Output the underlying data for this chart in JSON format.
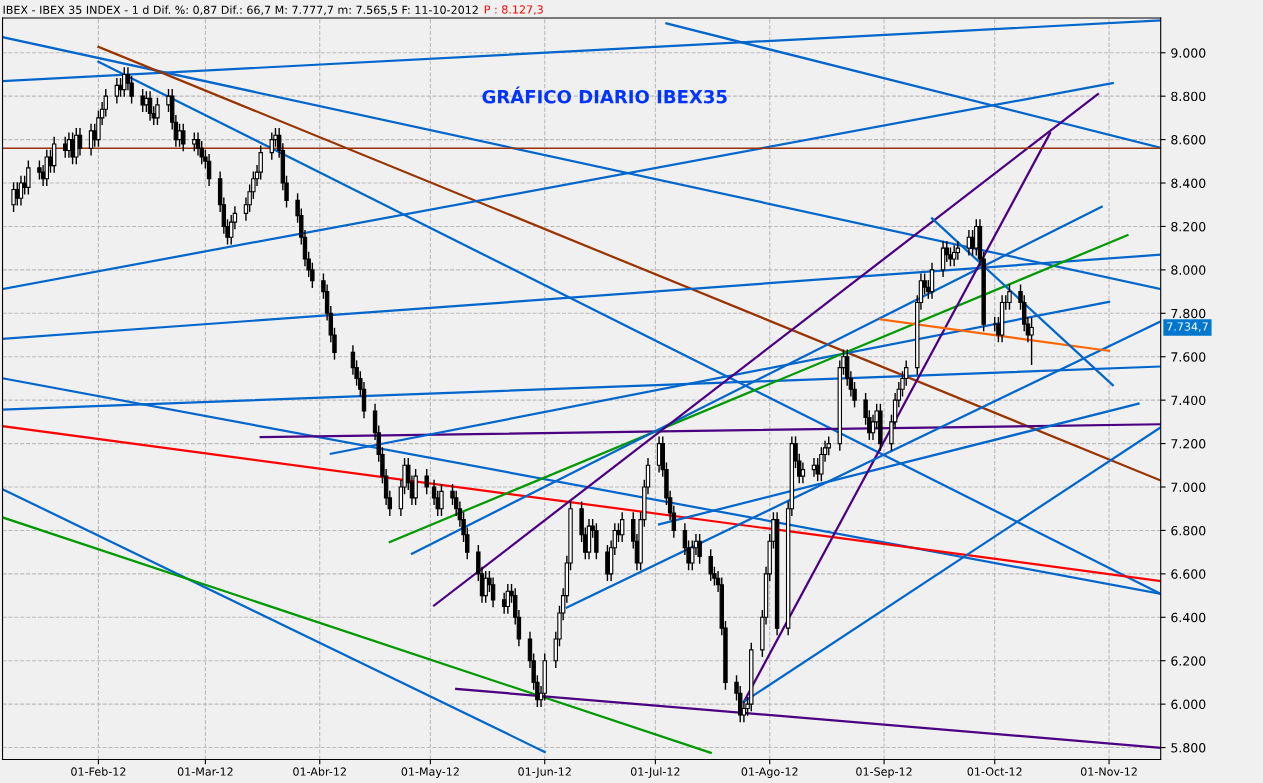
{
  "chart_data": {
    "type": "candlestick",
    "title": "IBEX - IBEX 35 INDEX - 1 d Dif. %: 0,87 Dif.: 66,7 M: 7.777,7 m: 7.565,5 F: 11-10-2012",
    "annotations": [
      "P : 8.127,3",
      "GRÁFICO DIARIO IBEX35",
      "7.734,7"
    ],
    "x": [
      "2012-01-09",
      "2012-01-10",
      "2012-01-11",
      "2012-01-12",
      "2012-01-13",
      "2012-01-16",
      "2012-01-17",
      "2012-01-18",
      "2012-01-19",
      "2012-01-20",
      "2012-01-23",
      "2012-01-24",
      "2012-01-25",
      "2012-01-26",
      "2012-01-27",
      "2012-01-30",
      "2012-01-31",
      "2012-02-01",
      "2012-02-02",
      "2012-02-03",
      "2012-02-06",
      "2012-02-07",
      "2012-02-08",
      "2012-02-09",
      "2012-02-10",
      "2012-02-13",
      "2012-02-14",
      "2012-02-15",
      "2012-02-16",
      "2012-02-17",
      "2012-02-20",
      "2012-02-21",
      "2012-02-22",
      "2012-02-23",
      "2012-02-24",
      "2012-02-27",
      "2012-02-28",
      "2012-02-29",
      "2012-03-01",
      "2012-03-02",
      "2012-03-05",
      "2012-03-06",
      "2012-03-07",
      "2012-03-08",
      "2012-03-09",
      "2012-03-12",
      "2012-03-13",
      "2012-03-14",
      "2012-03-15",
      "2012-03-16",
      "2012-03-19",
      "2012-03-20",
      "2012-03-21",
      "2012-03-22",
      "2012-03-23",
      "2012-03-26",
      "2012-03-27",
      "2012-03-28",
      "2012-03-29",
      "2012-03-30",
      "2012-04-02",
      "2012-04-03",
      "2012-04-04",
      "2012-04-05",
      "2012-04-10",
      "2012-04-11",
      "2012-04-12",
      "2012-04-13",
      "2012-04-16",
      "2012-04-17",
      "2012-04-18",
      "2012-04-19",
      "2012-04-20",
      "2012-04-23",
      "2012-04-24",
      "2012-04-25",
      "2012-04-26",
      "2012-04-27",
      "2012-04-30",
      "2012-05-02",
      "2012-05-03",
      "2012-05-04",
      "2012-05-07",
      "2012-05-08",
      "2012-05-09",
      "2012-05-10",
      "2012-05-11",
      "2012-05-14",
      "2012-05-15",
      "2012-05-16",
      "2012-05-17",
      "2012-05-18",
      "2012-05-21",
      "2012-05-22",
      "2012-05-23",
      "2012-05-24",
      "2012-05-25",
      "2012-05-28",
      "2012-05-29",
      "2012-05-30",
      "2012-05-31",
      "2012-06-01",
      "2012-06-04",
      "2012-06-05",
      "2012-06-06",
      "2012-06-07",
      "2012-06-08",
      "2012-06-11",
      "2012-06-12",
      "2012-06-13",
      "2012-06-14",
      "2012-06-15",
      "2012-06-18",
      "2012-06-19",
      "2012-06-20",
      "2012-06-21",
      "2012-06-22",
      "2012-06-25",
      "2012-06-26",
      "2012-06-27",
      "2012-06-28",
      "2012-06-29",
      "2012-07-02",
      "2012-07-03",
      "2012-07-04",
      "2012-07-05",
      "2012-07-06",
      "2012-07-09",
      "2012-07-10",
      "2012-07-11",
      "2012-07-12",
      "2012-07-13",
      "2012-07-16",
      "2012-07-17",
      "2012-07-18",
      "2012-07-19",
      "2012-07-20",
      "2012-07-23",
      "2012-07-24",
      "2012-07-25",
      "2012-07-26",
      "2012-07-27",
      "2012-07-30",
      "2012-07-31",
      "2012-08-01",
      "2012-08-02",
      "2012-08-03",
      "2012-08-06",
      "2012-08-07",
      "2012-08-08",
      "2012-08-09",
      "2012-08-10",
      "2012-08-13",
      "2012-08-14",
      "2012-08-15",
      "2012-08-16",
      "2012-08-17",
      "2012-08-20",
      "2012-08-21",
      "2012-08-22",
      "2012-08-23",
      "2012-08-24",
      "2012-08-27",
      "2012-08-28",
      "2012-08-29",
      "2012-08-30",
      "2012-08-31",
      "2012-09-03",
      "2012-09-04",
      "2012-09-05",
      "2012-09-06",
      "2012-09-07",
      "2012-09-10",
      "2012-09-11",
      "2012-09-12",
      "2012-09-13",
      "2012-09-14",
      "2012-09-17",
      "2012-09-18",
      "2012-09-19",
      "2012-09-20",
      "2012-09-21",
      "2012-09-24",
      "2012-09-25",
      "2012-09-26",
      "2012-09-27",
      "2012-09-28",
      "2012-10-01",
      "2012-10-02",
      "2012-10-03",
      "2012-10-04",
      "2012-10-05",
      "2012-10-08",
      "2012-10-09",
      "2012-10-10",
      "2012-10-11"
    ],
    "ohlc": [
      [
        8300,
        8400,
        8270,
        8370
      ],
      [
        8370,
        8400,
        8300,
        8330
      ],
      [
        8330,
        8430,
        8300,
        8400
      ],
      [
        8400,
        8430,
        8350,
        8380
      ],
      [
        8380,
        8500,
        8350,
        8470
      ],
      [
        8470,
        8500,
        8420,
        8450
      ],
      [
        8450,
        8480,
        8390,
        8420
      ],
      [
        8420,
        8550,
        8390,
        8520
      ],
      [
        8520,
        8550,
        8450,
        8480
      ],
      [
        8480,
        8610,
        8450,
        8580
      ],
      [
        8580,
        8610,
        8520,
        8550
      ],
      [
        8550,
        8630,
        8520,
        8600
      ],
      [
        8600,
        8630,
        8490,
        8520
      ],
      [
        8520,
        8650,
        8490,
        8620
      ],
      [
        8620,
        8650,
        8530,
        8560
      ],
      [
        8560,
        8670,
        8530,
        8640
      ],
      [
        8640,
        8670,
        8570,
        8600
      ],
      [
        8600,
        8730,
        8570,
        8700
      ],
      [
        8700,
        8770,
        8670,
        8740
      ],
      [
        8740,
        8830,
        8710,
        8800
      ],
      [
        8800,
        8880,
        8770,
        8850
      ],
      [
        8850,
        8880,
        8800,
        8830
      ],
      [
        8830,
        8930,
        8800,
        8900
      ],
      [
        8900,
        8930,
        8830,
        8860
      ],
      [
        8860,
        8890,
        8770,
        8800
      ],
      [
        8800,
        8830,
        8730,
        8760
      ],
      [
        8760,
        8820,
        8730,
        8790
      ],
      [
        8790,
        8820,
        8690,
        8720
      ],
      [
        8720,
        8750,
        8670,
        8700
      ],
      [
        8700,
        8790,
        8670,
        8760
      ],
      [
        8760,
        8830,
        8730,
        8800
      ],
      [
        8800,
        8830,
        8650,
        8680
      ],
      [
        8680,
        8710,
        8570,
        8600
      ],
      [
        8600,
        8670,
        8570,
        8640
      ],
      [
        8640,
        8670,
        8550,
        8580
      ],
      [
        8580,
        8630,
        8550,
        8600
      ],
      [
        8600,
        8630,
        8530,
        8560
      ],
      [
        8560,
        8590,
        8490,
        8520
      ],
      [
        8520,
        8550,
        8470,
        8500
      ],
      [
        8500,
        8530,
        8390,
        8420
      ],
      [
        8420,
        8450,
        8270,
        8300
      ],
      [
        8300,
        8330,
        8170,
        8200
      ],
      [
        8200,
        8230,
        8120,
        8150
      ],
      [
        8150,
        8250,
        8120,
        8220
      ],
      [
        8220,
        8290,
        8190,
        8260
      ],
      [
        8260,
        8330,
        8230,
        8300
      ],
      [
        8300,
        8390,
        8270,
        8360
      ],
      [
        8360,
        8450,
        8330,
        8420
      ],
      [
        8420,
        8480,
        8390,
        8450
      ],
      [
        8450,
        8570,
        8420,
        8540
      ],
      [
        8540,
        8630,
        8510,
        8600
      ],
      [
        8600,
        8650,
        8570,
        8620
      ],
      [
        8620,
        8650,
        8520,
        8550
      ],
      [
        8550,
        8580,
        8370,
        8400
      ],
      [
        8400,
        8430,
        8290,
        8320
      ],
      [
        8320,
        8350,
        8220,
        8250
      ],
      [
        8250,
        8280,
        8120,
        8150
      ],
      [
        8150,
        8180,
        8020,
        8050
      ],
      [
        8050,
        8080,
        7970,
        8000
      ],
      [
        8000,
        8030,
        7920,
        7950
      ],
      [
        7950,
        7980,
        7870,
        7900
      ],
      [
        7900,
        7930,
        7770,
        7800
      ],
      [
        7800,
        7830,
        7670,
        7700
      ],
      [
        7700,
        7730,
        7590,
        7620
      ],
      [
        7620,
        7650,
        7520,
        7550
      ],
      [
        7550,
        7580,
        7470,
        7500
      ],
      [
        7500,
        7530,
        7420,
        7450
      ],
      [
        7450,
        7480,
        7320,
        7350
      ],
      [
        7350,
        7380,
        7220,
        7250
      ],
      [
        7250,
        7280,
        7120,
        7150
      ],
      [
        7150,
        7180,
        7020,
        7050
      ],
      [
        7050,
        7080,
        6920,
        6950
      ],
      [
        6950,
        6980,
        6870,
        6900
      ],
      [
        6900,
        7030,
        6870,
        7000
      ],
      [
        7000,
        7130,
        6970,
        7100
      ],
      [
        7100,
        7130,
        6990,
        7020
      ],
      [
        7020,
        7050,
        6920,
        6950
      ],
      [
        6950,
        7080,
        6920,
        7050
      ],
      [
        7050,
        7080,
        6970,
        7000
      ],
      [
        7000,
        7030,
        6920,
        6950
      ],
      [
        6950,
        6980,
        6870,
        6900
      ],
      [
        6900,
        7010,
        6870,
        6980
      ],
      [
        6980,
        7010,
        6920,
        6950
      ],
      [
        6950,
        6980,
        6870,
        6900
      ],
      [
        6900,
        6930,
        6820,
        6850
      ],
      [
        6850,
        6880,
        6750,
        6780
      ],
      [
        6780,
        6810,
        6670,
        6700
      ],
      [
        6700,
        6730,
        6570,
        6600
      ],
      [
        6600,
        6630,
        6470,
        6500
      ],
      [
        6500,
        6610,
        6470,
        6580
      ],
      [
        6580,
        6610,
        6520,
        6550
      ],
      [
        6550,
        6580,
        6450,
        6480
      ],
      [
        6480,
        6510,
        6420,
        6450
      ],
      [
        6450,
        6550,
        6420,
        6520
      ],
      [
        6520,
        6550,
        6470,
        6500
      ],
      [
        6500,
        6530,
        6370,
        6400
      ],
      [
        6400,
        6430,
        6270,
        6300
      ],
      [
        6300,
        6330,
        6170,
        6200
      ],
      [
        6200,
        6230,
        6070,
        6100
      ],
      [
        6100,
        6130,
        5990,
        6020
      ],
      [
        6020,
        6080,
        5990,
        6050
      ],
      [
        6050,
        6230,
        6020,
        6200
      ],
      [
        6200,
        6330,
        6170,
        6300
      ],
      [
        6300,
        6450,
        6270,
        6420
      ],
      [
        6420,
        6530,
        6390,
        6500
      ],
      [
        6500,
        6680,
        6470,
        6650
      ],
      [
        6650,
        6930,
        6620,
        6900
      ],
      [
        6900,
        6930,
        6750,
        6780
      ],
      [
        6780,
        6810,
        6670,
        6700
      ],
      [
        6700,
        6850,
        6670,
        6820
      ],
      [
        6820,
        6850,
        6770,
        6800
      ],
      [
        6800,
        6830,
        6670,
        6700
      ],
      [
        6700,
        6730,
        6570,
        6600
      ],
      [
        6600,
        6750,
        6570,
        6720
      ],
      [
        6720,
        6830,
        6690,
        6800
      ],
      [
        6800,
        6830,
        6750,
        6780
      ],
      [
        6780,
        6880,
        6750,
        6850
      ],
      [
        6850,
        6880,
        6720,
        6750
      ],
      [
        6750,
        6780,
        6620,
        6650
      ],
      [
        6650,
        6880,
        6620,
        6850
      ],
      [
        6850,
        7030,
        6820,
        7000
      ],
      [
        7000,
        7130,
        6970,
        7100
      ],
      [
        7100,
        7230,
        7070,
        7200
      ],
      [
        7200,
        7230,
        7050,
        7080
      ],
      [
        7080,
        7110,
        6920,
        6950
      ],
      [
        6950,
        6980,
        6850,
        6880
      ],
      [
        6880,
        6910,
        6770,
        6800
      ],
      [
        6800,
        6830,
        6690,
        6720
      ],
      [
        6720,
        6750,
        6620,
        6650
      ],
      [
        6650,
        6750,
        6620,
        6720
      ],
      [
        6720,
        6780,
        6690,
        6750
      ],
      [
        6750,
        6780,
        6650,
        6680
      ],
      [
        6680,
        6710,
        6570,
        6600
      ],
      [
        6600,
        6630,
        6550,
        6580
      ],
      [
        6580,
        6610,
        6520,
        6550
      ],
      [
        6550,
        6580,
        6320,
        6350
      ],
      [
        6350,
        6380,
        6070,
        6100
      ],
      [
        6100,
        6130,
        6020,
        6050
      ],
      [
        6050,
        6080,
        5920,
        5950
      ],
      [
        5950,
        6010,
        5920,
        5980
      ],
      [
        5980,
        6030,
        5950,
        6000
      ],
      [
        6000,
        6280,
        5970,
        6250
      ],
      [
        6250,
        6430,
        6220,
        6400
      ],
      [
        6400,
        6630,
        6370,
        6600
      ],
      [
        6600,
        6780,
        6570,
        6750
      ],
      [
        6750,
        6880,
        6720,
        6850
      ],
      [
        6850,
        6880,
        6320,
        6350
      ],
      [
        6350,
        6930,
        6320,
        6900
      ],
      [
        6900,
        7230,
        6870,
        7200
      ],
      [
        7200,
        7230,
        7090,
        7120
      ],
      [
        7120,
        7150,
        7020,
        7050
      ],
      [
        7050,
        7110,
        7020,
        7080
      ],
      [
        7080,
        7130,
        7050,
        7100
      ],
      [
        7100,
        7130,
        7030,
        7060
      ],
      [
        7060,
        7180,
        7030,
        7150
      ],
      [
        7150,
        7210,
        7120,
        7180
      ],
      [
        7180,
        7230,
        7150,
        7200
      ],
      [
        7200,
        7580,
        7170,
        7550
      ],
      [
        7550,
        7630,
        7520,
        7600
      ],
      [
        7600,
        7630,
        7470,
        7500
      ],
      [
        7500,
        7530,
        7420,
        7450
      ],
      [
        7450,
        7480,
        7370,
        7400
      ],
      [
        7400,
        7430,
        7290,
        7320
      ],
      [
        7320,
        7350,
        7220,
        7250
      ],
      [
        7250,
        7330,
        7220,
        7300
      ],
      [
        7300,
        7380,
        7270,
        7350
      ],
      [
        7350,
        7380,
        7170,
        7200
      ],
      [
        7200,
        7330,
        7170,
        7300
      ],
      [
        7300,
        7430,
        7270,
        7400
      ],
      [
        7400,
        7480,
        7370,
        7450
      ],
      [
        7450,
        7530,
        7420,
        7500
      ],
      [
        7500,
        7580,
        7470,
        7550
      ],
      [
        7550,
        7880,
        7520,
        7850
      ],
      [
        7850,
        7980,
        7820,
        7950
      ],
      [
        7950,
        7980,
        7890,
        7920
      ],
      [
        7920,
        7950,
        7870,
        7900
      ],
      [
        7900,
        8030,
        7870,
        8000
      ],
      [
        8000,
        8130,
        7970,
        8100
      ],
      [
        8100,
        8130,
        8040,
        8070
      ],
      [
        8070,
        8100,
        8020,
        8050
      ],
      [
        8050,
        8110,
        8020,
        8080
      ],
      [
        8080,
        8130,
        8050,
        8100
      ],
      [
        8100,
        8180,
        8070,
        8150
      ],
      [
        8150,
        8180,
        8070,
        8100
      ],
      [
        8100,
        8230,
        8070,
        8200
      ],
      [
        8200,
        8230,
        8020,
        8050
      ],
      [
        8050,
        8080,
        7720,
        7750
      ],
      [
        7750,
        7780,
        7720,
        7750
      ],
      [
        7750,
        7780,
        7670,
        7700
      ],
      [
        7700,
        7880,
        7670,
        7850
      ],
      [
        7850,
        7880,
        7820,
        7850
      ],
      [
        7850,
        7930,
        7820,
        7900
      ],
      [
        7900,
        7930,
        7820,
        7850
      ],
      [
        7850,
        7880,
        7720,
        7750
      ],
      [
        7750,
        7780,
        7670,
        7700
      ],
      [
        7700,
        7777.7,
        7565.5,
        7734.7
      ]
    ],
    "series": [
      {
        "type": "line",
        "color": "#0066cc",
        "x": [
          "2012-01-06",
          "2012-11-15"
        ],
        "values": [
          9072,
          7912
        ]
      },
      {
        "type": "line",
        "color": "#0066cc",
        "x": [
          "2012-01-06",
          "2012-11-15"
        ],
        "values": [
          8869,
          9149
        ]
      },
      {
        "type": "line",
        "color": "#0066cc",
        "x": [
          "2012-07-04",
          "2012-11-15"
        ],
        "values": [
          9135,
          8562
        ]
      },
      {
        "type": "line",
        "color": "#993300",
        "x": [
          "2012-02-01",
          "2012-11-15"
        ],
        "values": [
          9027,
          7030
        ]
      },
      {
        "type": "line",
        "color": "#0066cc",
        "x": [
          "2012-02-01",
          "2012-11-15"
        ],
        "values": [
          8959,
          6508
        ]
      },
      {
        "type": "line",
        "color": "#0066cc",
        "x": [
          "2012-01-06",
          "2012-11-02"
        ],
        "values": [
          7912,
          8860
        ]
      },
      {
        "type": "line",
        "color": "#0066cc",
        "x": [
          "2012-01-06",
          "2012-11-15"
        ],
        "values": [
          7682,
          8070
        ]
      },
      {
        "type": "line",
        "color": "#0066cc",
        "x": [
          "2012-01-06",
          "2012-11-15"
        ],
        "values": [
          7357,
          7555
        ]
      },
      {
        "type": "line",
        "color": "#0066cc",
        "x": [
          "2012-01-06",
          "2012-11-15"
        ],
        "values": [
          7501,
          6508
        ]
      },
      {
        "type": "line",
        "color": "#ff0000",
        "x": [
          "2012-01-06",
          "2012-11-15"
        ],
        "values": [
          7280,
          6567
        ]
      },
      {
        "type": "line",
        "color": "#4b0082",
        "x": [
          "2012-03-16",
          "2012-11-15"
        ],
        "values": [
          7230,
          7289
        ]
      },
      {
        "type": "line",
        "color": "#0066cc",
        "x": [
          "2012-07-02",
          "2012-11-09"
        ],
        "values": [
          6828,
          7384
        ]
      },
      {
        "type": "line",
        "color": "#0066cc",
        "x": [
          "2012-04-04",
          "2012-11-01"
        ],
        "values": [
          7153,
          7853
        ]
      },
      {
        "type": "line",
        "color": "#009900",
        "x": [
          "2012-04-20",
          "2012-11-06"
        ],
        "values": [
          6747,
          8160
        ]
      },
      {
        "type": "line",
        "color": "#0066cc",
        "x": [
          "2012-04-26",
          "2012-10-30"
        ],
        "values": [
          6693,
          8291
        ]
      },
      {
        "type": "line",
        "color": "#4b0082",
        "x": [
          "2012-05-02",
          "2012-10-29"
        ],
        "values": [
          6454,
          8810
        ]
      },
      {
        "type": "line",
        "color": "#4b0082",
        "x": [
          "2012-07-25",
          "2012-10-16"
        ],
        "values": [
          6011,
          8630
        ]
      },
      {
        "type": "line",
        "color": "#0066cc",
        "x": [
          "2012-07-25",
          "2012-11-15"
        ],
        "values": [
          6011,
          7275
        ]
      },
      {
        "type": "line",
        "color": "#0066cc",
        "x": [
          "2012-06-07",
          "2012-11-15"
        ],
        "values": [
          6445,
          7763
        ]
      },
      {
        "type": "line",
        "color": "#ff6600",
        "x": [
          "2012-08-31",
          "2012-11-01"
        ],
        "values": [
          7772,
          7627
        ]
      },
      {
        "type": "line",
        "color": "#0066cc",
        "x": [
          "2012-09-14",
          "2012-11-02"
        ],
        "values": [
          8237,
          7469
        ]
      },
      {
        "type": "line",
        "color": "#0066cc",
        "x": [
          "2012-01-06",
          "2012-06-01"
        ],
        "values": [
          6990,
          5780
        ]
      },
      {
        "type": "line",
        "color": "#009900",
        "x": [
          "2012-01-06",
          "2012-07-16"
        ],
        "values": [
          6860,
          5776
        ]
      },
      {
        "type": "line",
        "color": "#4b0082",
        "x": [
          "2012-05-08",
          "2012-11-15"
        ],
        "values": [
          6070,
          5799
        ]
      }
    ],
    "ref_lines": [
      {
        "axis": "y",
        "value": 8560,
        "color": "#993300"
      }
    ],
    "xlim": [
      "2012-01-06",
      "2012-11-15"
    ],
    "ylim": [
      5745,
      9160
    ],
    "xticks": [
      {
        "value": "2012-02-01",
        "label": "01-Feb-12"
      },
      {
        "value": "2012-03-01",
        "label": "01-Mar-12"
      },
      {
        "value": "2012-04-01",
        "label": "01-Abr-12"
      },
      {
        "value": "2012-05-01",
        "label": "01-May-12"
      },
      {
        "value": "2012-06-01",
        "label": "01-Jun-12"
      },
      {
        "value": "2012-07-01",
        "label": "01-Jul-12"
      },
      {
        "value": "2012-08-01",
        "label": "01-Ago-12"
      },
      {
        "value": "2012-09-01",
        "label": "01-Sep-12"
      },
      {
        "value": "2012-10-01",
        "label": "01-Oct-12"
      },
      {
        "value": "2012-11-01",
        "label": "01-Nov-12"
      }
    ],
    "yticks": [
      {
        "value": 5800,
        "label": "5.800"
      },
      {
        "value": 6000,
        "label": "6.000"
      },
      {
        "value": 6200,
        "label": "6.200"
      },
      {
        "value": 6400,
        "label": "6.400"
      },
      {
        "value": 6600,
        "label": "6.600"
      },
      {
        "value": 6800,
        "label": "6.800"
      },
      {
        "value": 7000,
        "label": "7.000"
      },
      {
        "value": 7200,
        "label": "7.200"
      },
      {
        "value": 7400,
        "label": "7.400"
      },
      {
        "value": 7600,
        "label": "7.600"
      },
      {
        "value": 7800,
        "label": "7.800"
      },
      {
        "value": 8000,
        "label": "8.000"
      },
      {
        "value": 8200,
        "label": "8.200"
      },
      {
        "value": 8400,
        "label": "8.400"
      },
      {
        "value": 8600,
        "label": "8.600"
      },
      {
        "value": 8800,
        "label": "8.800"
      },
      {
        "value": 9000,
        "label": "9.000"
      }
    ],
    "grid": true
  }
}
